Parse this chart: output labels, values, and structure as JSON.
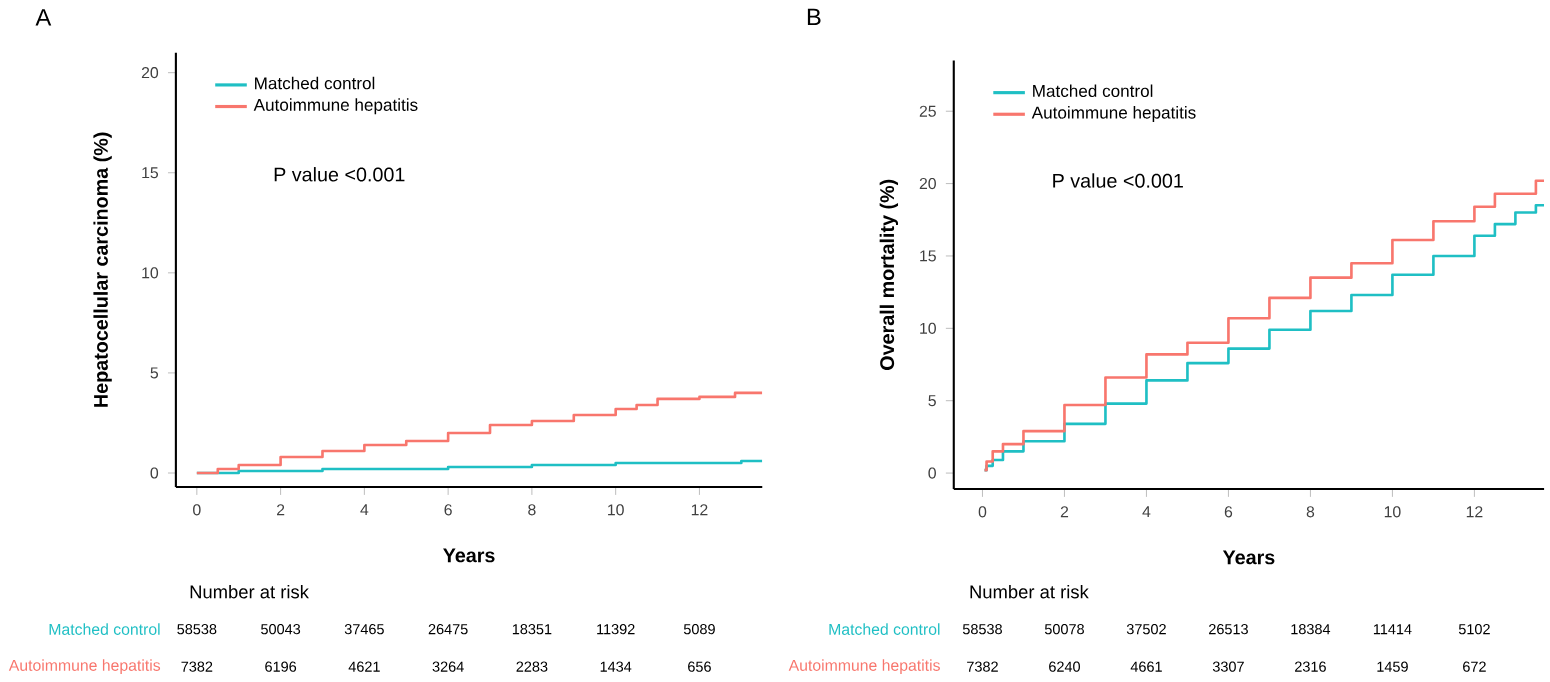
{
  "chart_data": [
    {
      "type": "step",
      "title": "A",
      "xlabel": "Years",
      "ylabel": "Hepatocellular carcinoma (%)",
      "xlim": [
        -0.5,
        13.5
      ],
      "ylim": [
        -0.7,
        21
      ],
      "xticks": [
        0,
        2,
        4,
        6,
        8,
        10,
        12
      ],
      "yticks": [
        0,
        5,
        10,
        15,
        20
      ],
      "legend": "top left",
      "annotations": [
        "P value <0.001",
        "Number at risk",
        "58538",
        "50043",
        "37465",
        "26475",
        "18351",
        "11392",
        "5089",
        "7382",
        "6196",
        "4621",
        "3264",
        "2283",
        "1434",
        "656"
      ],
      "series": [
        {
          "name": "Matched control",
          "color": "#1fbfc4",
          "x": [
            0,
            1,
            2,
            3,
            4,
            5,
            6,
            7,
            8,
            9,
            10,
            11,
            12,
            13,
            13.5
          ],
          "values": [
            0,
            0.1,
            0.1,
            0.2,
            0.2,
            0.2,
            0.3,
            0.3,
            0.4,
            0.4,
            0.5,
            0.5,
            0.5,
            0.6,
            0.6
          ]
        },
        {
          "name": "Autoimmune hepatitis",
          "color": "#f8766d",
          "x": [
            0,
            0.5,
            1,
            2,
            3,
            4,
            5,
            6,
            7,
            8,
            9,
            10,
            10.5,
            11,
            12,
            12.8,
            12.85,
            13.5
          ],
          "values": [
            0,
            0.2,
            0.4,
            0.8,
            1.1,
            1.4,
            1.6,
            2.0,
            2.4,
            2.6,
            2.9,
            3.2,
            3.4,
            3.7,
            3.8,
            3.8,
            4.0,
            4.0
          ]
        }
      ]
    },
    {
      "type": "step",
      "title": "B",
      "xlabel": "Years",
      "ylabel": "Overall mortality (%)",
      "xlim": [
        -0.7,
        13.7
      ],
      "ylim": [
        -1.1,
        28.5
      ],
      "xticks": [
        0,
        2,
        4,
        6,
        8,
        10,
        12
      ],
      "yticks": [
        0,
        5,
        10,
        15,
        20,
        25
      ],
      "legend": "top left",
      "annotations": [
        "P value <0.001",
        "Number at risk",
        "58538",
        "50078",
        "37502",
        "26513",
        "18384",
        "11414",
        "5102",
        "7382",
        "6240",
        "4661",
        "3307",
        "2316",
        "1459",
        "672"
      ],
      "series": [
        {
          "name": "Matched control",
          "color": "#1fbfc4",
          "x": [
            0.05,
            0.1,
            0.25,
            0.5,
            1,
            2,
            3,
            4,
            5,
            6,
            7,
            8,
            9,
            10,
            11,
            12,
            12.5,
            13,
            13.5,
            13.7
          ],
          "values": [
            0.2,
            0.5,
            0.9,
            1.5,
            2.2,
            3.4,
            4.8,
            6.4,
            7.6,
            8.6,
            9.9,
            11.2,
            12.3,
            13.7,
            15.0,
            16.4,
            17.2,
            18.0,
            18.5,
            18.5
          ]
        },
        {
          "name": "Autoimmune hepatitis",
          "color": "#f8766d",
          "x": [
            0.05,
            0.1,
            0.25,
            0.5,
            1,
            2,
            3,
            4,
            5,
            6,
            7,
            8,
            9,
            10,
            11,
            12,
            12.5,
            13,
            13.5,
            13.7
          ],
          "values": [
            0.2,
            0.8,
            1.5,
            2.0,
            2.9,
            4.7,
            6.6,
            8.2,
            9.0,
            10.7,
            12.1,
            13.5,
            14.5,
            16.1,
            17.4,
            18.4,
            19.3,
            19.3,
            20.2,
            20.2
          ]
        }
      ]
    }
  ]
}
